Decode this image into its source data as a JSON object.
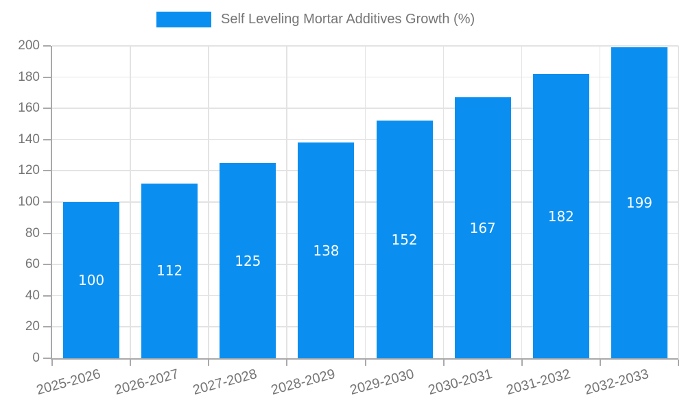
{
  "legend": {
    "label": "Self Leveling Mortar Additives Growth (%)"
  },
  "chart_data": {
    "type": "bar",
    "title": "Self Leveling Mortar Additives Growth (%)",
    "categories": [
      "2025-2026",
      "2026-2027",
      "2027-2028",
      "2028-2029",
      "2029-2030",
      "2030-2031",
      "2031-2032",
      "2032-2033"
    ],
    "values": [
      100,
      112,
      125,
      138,
      152,
      167,
      182,
      199
    ],
    "xlabel": "",
    "ylabel": "",
    "ylim": [
      0,
      200
    ],
    "yticks": [
      0,
      20,
      40,
      60,
      80,
      100,
      120,
      140,
      160,
      180,
      200
    ],
    "grid": true,
    "legend_position": "top-center",
    "bar_label_position": "inside-center",
    "x_tick_label_rotation_deg": 15,
    "colors": {
      "bar": "#0a8ff0",
      "bar_label": "#ffffff",
      "axis": "#a9a9a9",
      "grid": "#e3e3e3",
      "tick_label": "#757575"
    }
  }
}
